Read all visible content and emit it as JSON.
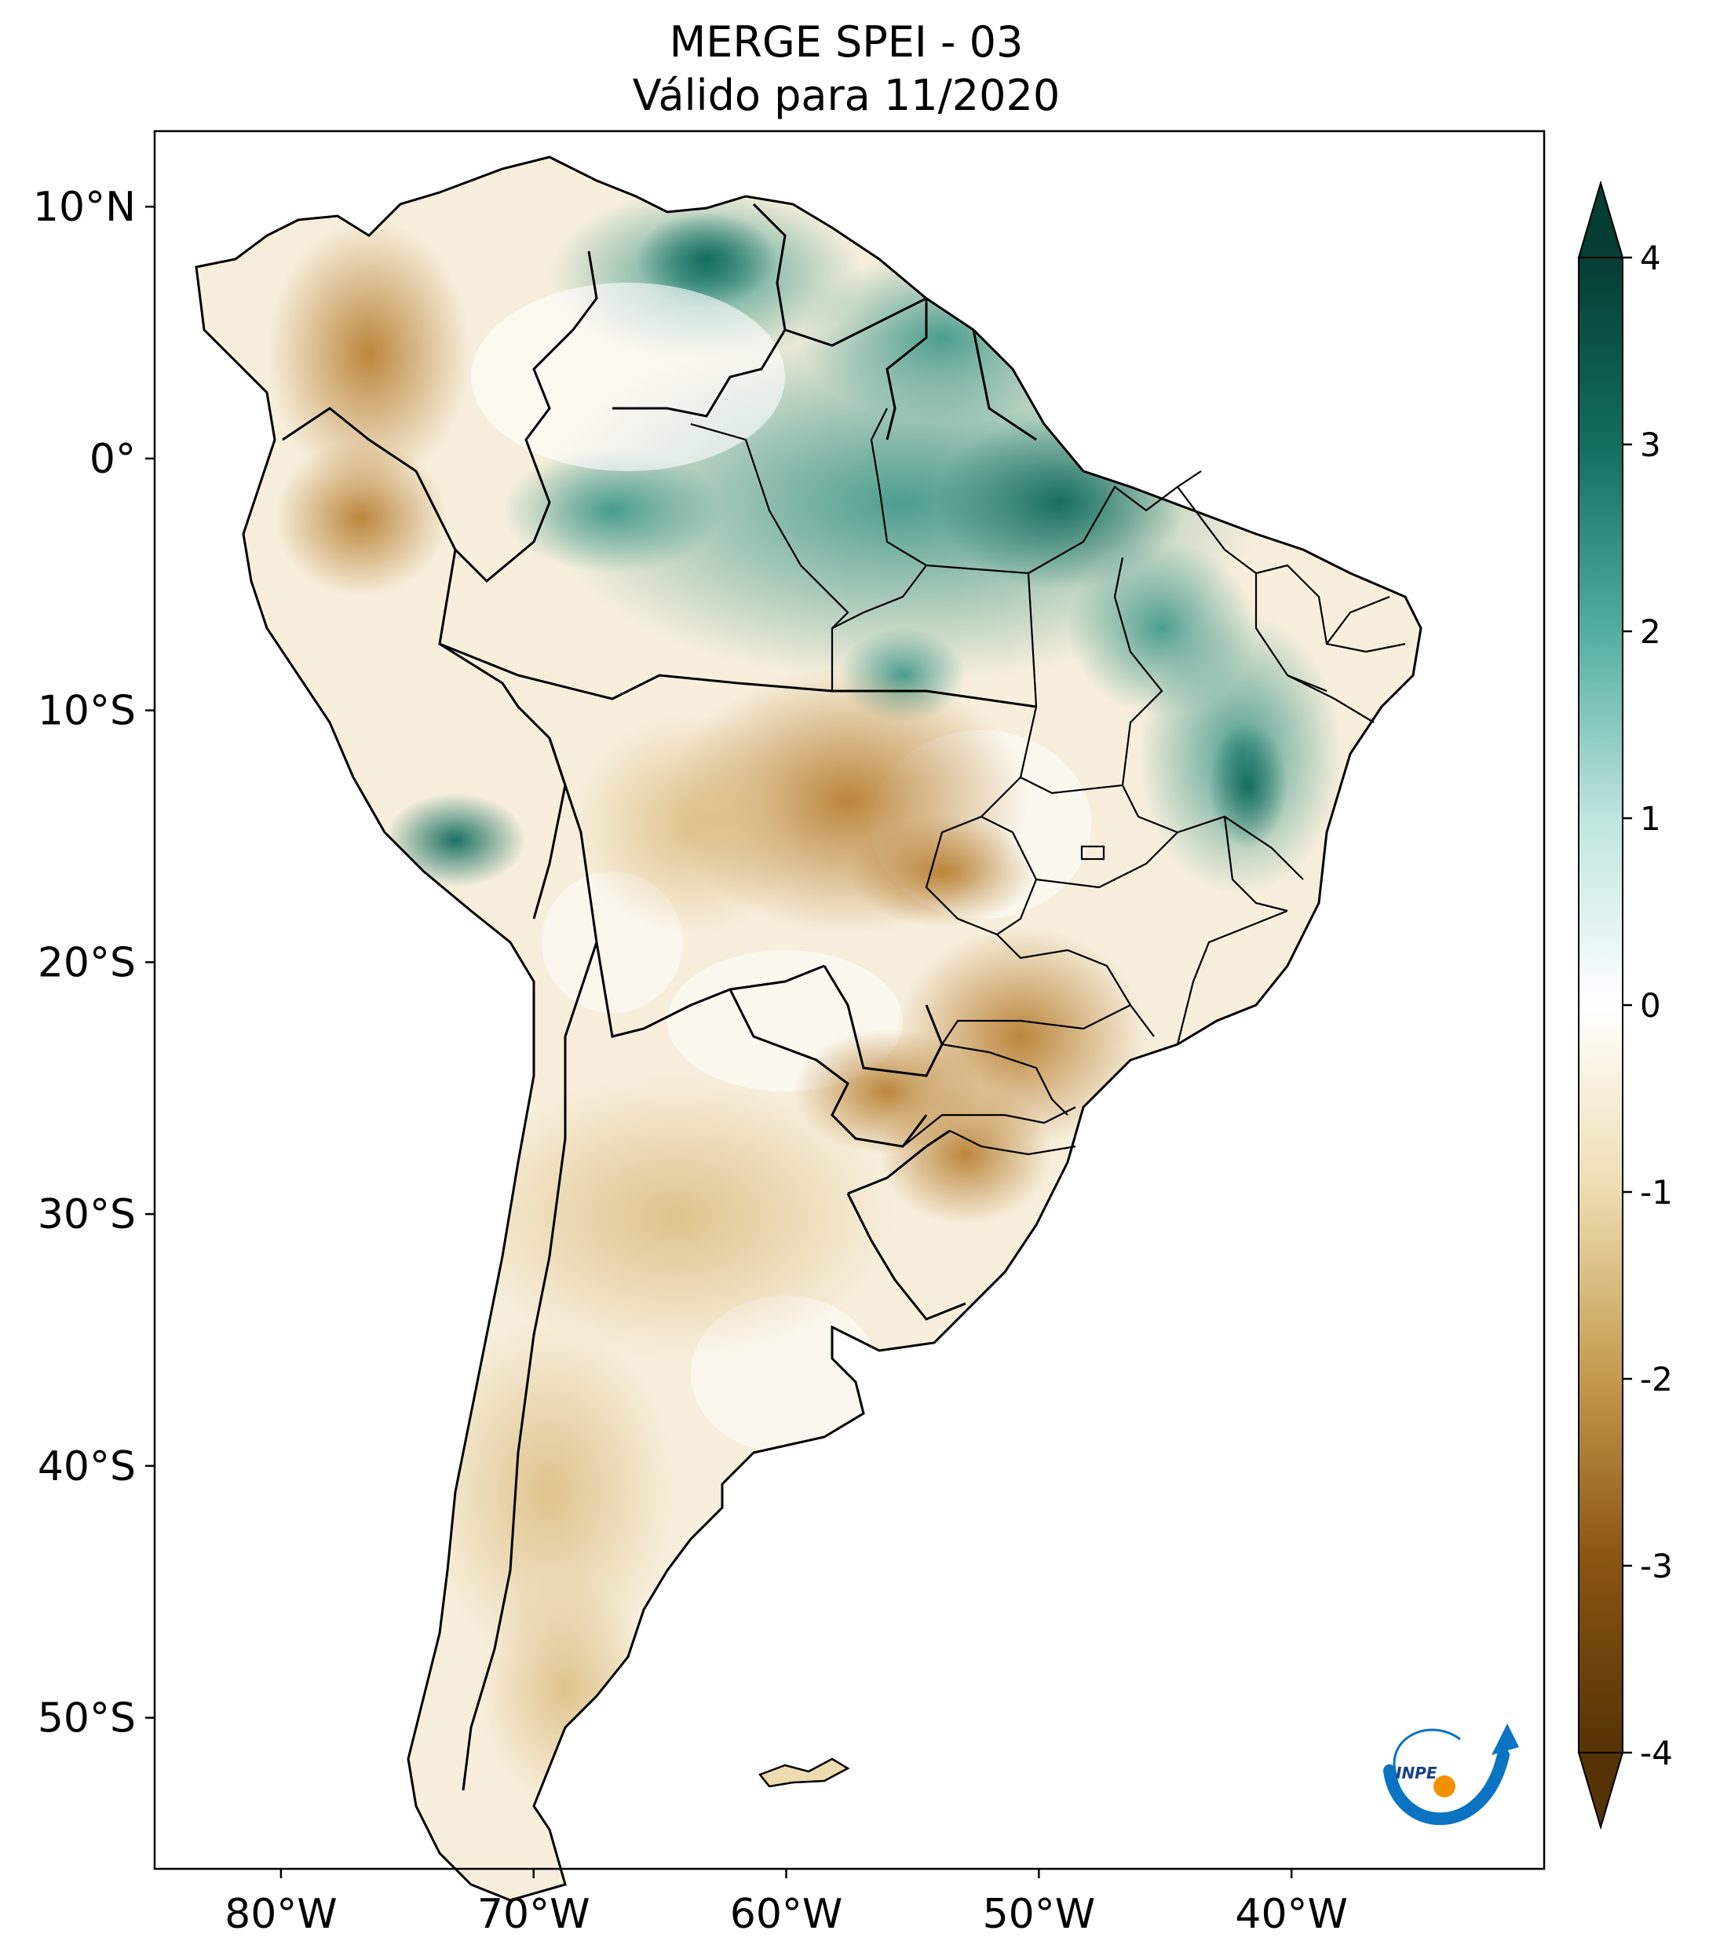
{
  "title": {
    "line1": "MERGE   SPEI - 03",
    "line2": "Válido para 11/2020"
  },
  "map": {
    "type": "choropleth-raster",
    "variable": "SPEI - 03",
    "region": "South America",
    "lon_range": [
      -85,
      -30
    ],
    "lat_range": [
      -56,
      13
    ],
    "lat_ticks": [
      {
        "value": 10,
        "label": "10°N"
      },
      {
        "value": 0,
        "label": "0°"
      },
      {
        "value": -10,
        "label": "10°S"
      },
      {
        "value": -20,
        "label": "20°S"
      },
      {
        "value": -30,
        "label": "30°S"
      },
      {
        "value": -40,
        "label": "40°S"
      },
      {
        "value": -50,
        "label": "50°S"
      }
    ],
    "lon_ticks": [
      {
        "value": -80,
        "label": "80°W"
      },
      {
        "value": -70,
        "label": "70°W"
      },
      {
        "value": -60,
        "label": "60°W"
      },
      {
        "value": -50,
        "label": "50°W"
      },
      {
        "value": -40,
        "label": "40°W"
      }
    ]
  },
  "colorbar": {
    "min": -4,
    "max": 4,
    "extend": "both",
    "ticks": [
      {
        "value": 4,
        "label": "4"
      },
      {
        "value": 3,
        "label": "3"
      },
      {
        "value": 2,
        "label": "2"
      },
      {
        "value": 1,
        "label": "1"
      },
      {
        "value": 0,
        "label": "0"
      },
      {
        "value": -1,
        "label": "-1"
      },
      {
        "value": -2,
        "label": "-2"
      },
      {
        "value": -3,
        "label": "-3"
      },
      {
        "value": -4,
        "label": "-4"
      }
    ],
    "colors": {
      "very_wet": "#053d33",
      "wet": "#2e8f82",
      "moist": "#a6dbd3",
      "neutral": "#ffffff",
      "dry": "#e6cf98",
      "very_dry": "#b57a2a",
      "extreme_dry": "#553305"
    }
  },
  "logo": {
    "text": "INPE",
    "arc_color": "#0a73c2",
    "dot_color": "#f39200"
  }
}
